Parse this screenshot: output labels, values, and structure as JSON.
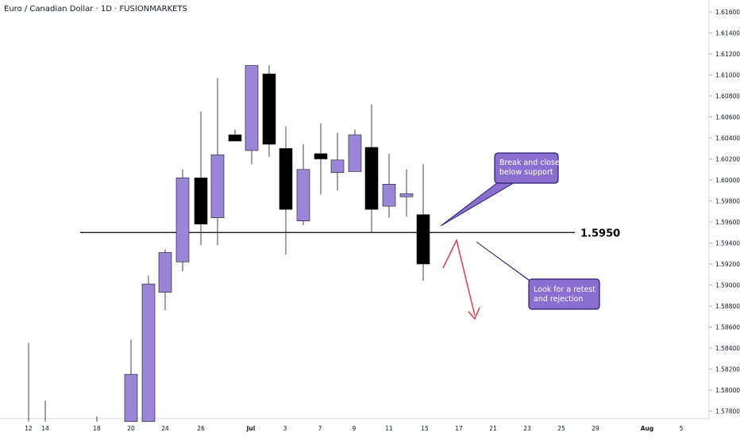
{
  "header": {
    "title": "Euro / Canadian Dollar · 1D · FUSIONMARKETS"
  },
  "chart_data": {
    "type": "candlestick",
    "ylim": [
      1.577,
      1.617
    ],
    "y_ticks": [
      "1.61600",
      "1.61400",
      "1.61200",
      "1.61000",
      "1.60800",
      "1.60600",
      "1.60400",
      "1.60200",
      "1.60000",
      "1.59800",
      "1.59600",
      "1.59400",
      "1.59200",
      "1.59000",
      "1.58800",
      "1.58600",
      "1.58400",
      "1.58200",
      "1.58000",
      "1.57800"
    ],
    "x_tick_labels": [
      "12",
      "14",
      "18",
      "20",
      "24",
      "26",
      "Jul",
      "3",
      "7",
      "9",
      "11",
      "15",
      "17",
      "21",
      "23",
      "25",
      "29",
      "Aug",
      "5"
    ],
    "support": {
      "label": "1.5950",
      "value": 1.595
    },
    "candles": [
      {
        "o": 1.577,
        "h": 1.5845,
        "l": 1.577,
        "c": 1.577,
        "dir": "flat"
      },
      {
        "o": 1.577,
        "h": 1.579,
        "l": 1.577,
        "c": 1.577,
        "dir": "flat"
      },
      {
        "o": 1.577,
        "h": 1.5775,
        "l": 1.577,
        "c": 1.577,
        "dir": "flat"
      },
      {
        "o": 1.577,
        "h": 1.5848,
        "l": 1.577,
        "c": 1.5815,
        "dir": "up"
      },
      {
        "o": 1.577,
        "h": 1.5909,
        "l": 1.577,
        "c": 1.5901,
        "dir": "up"
      },
      {
        "o": 1.5893,
        "h": 1.5934,
        "l": 1.5876,
        "c": 1.5931,
        "dir": "up"
      },
      {
        "o": 1.5922,
        "h": 1.601,
        "l": 1.5913,
        "c": 1.6002,
        "dir": "up"
      },
      {
        "o": 1.6002,
        "h": 1.6065,
        "l": 1.5938,
        "c": 1.5958,
        "dir": "down"
      },
      {
        "o": 1.5964,
        "h": 1.6097,
        "l": 1.5938,
        "c": 1.6024,
        "dir": "up"
      },
      {
        "o": 1.6043,
        "h": 1.6048,
        "l": 1.6037,
        "c": 1.6037,
        "dir": "down"
      },
      {
        "o": 1.6028,
        "h": 1.6109,
        "l": 1.6015,
        "c": 1.6109,
        "dir": "up"
      },
      {
        "o": 1.6101,
        "h": 1.6109,
        "l": 1.6022,
        "c": 1.6034,
        "dir": "down"
      },
      {
        "o": 1.603,
        "h": 1.6051,
        "l": 1.5929,
        "c": 1.5972,
        "dir": "down"
      },
      {
        "o": 1.5961,
        "h": 1.6034,
        "l": 1.5957,
        "c": 1.601,
        "dir": "up"
      },
      {
        "o": 1.6025,
        "h": 1.6054,
        "l": 1.5986,
        "c": 1.602,
        "dir": "down"
      },
      {
        "o": 1.6007,
        "h": 1.6045,
        "l": 1.599,
        "c": 1.6019,
        "dir": "up"
      },
      {
        "o": 1.6008,
        "h": 1.6048,
        "l": 1.6008,
        "c": 1.6043,
        "dir": "up"
      },
      {
        "o": 1.6031,
        "h": 1.6072,
        "l": 1.595,
        "c": 1.5972,
        "dir": "down"
      },
      {
        "o": 1.5975,
        "h": 1.6025,
        "l": 1.5964,
        "c": 1.5996,
        "dir": "up"
      },
      {
        "o": 1.5984,
        "h": 1.601,
        "l": 1.5965,
        "c": 1.5987,
        "dir": "up"
      },
      {
        "o": 1.5967,
        "h": 1.6015,
        "l": 1.5904,
        "c": 1.592,
        "dir": "down"
      }
    ],
    "annotations": [
      {
        "name": "break-callout",
        "lines": [
          "Break and close",
          "below support"
        ]
      },
      {
        "name": "retest-callout",
        "lines": [
          "Look for a retest",
          "and rejection"
        ]
      }
    ],
    "colors": {
      "up": "#9a85d6",
      "down": "#000000",
      "callout_fill": "#8a6fd1",
      "callout_border": "#2a1f6e",
      "arrow": "#e8394c",
      "axis_text": "#131722"
    }
  }
}
